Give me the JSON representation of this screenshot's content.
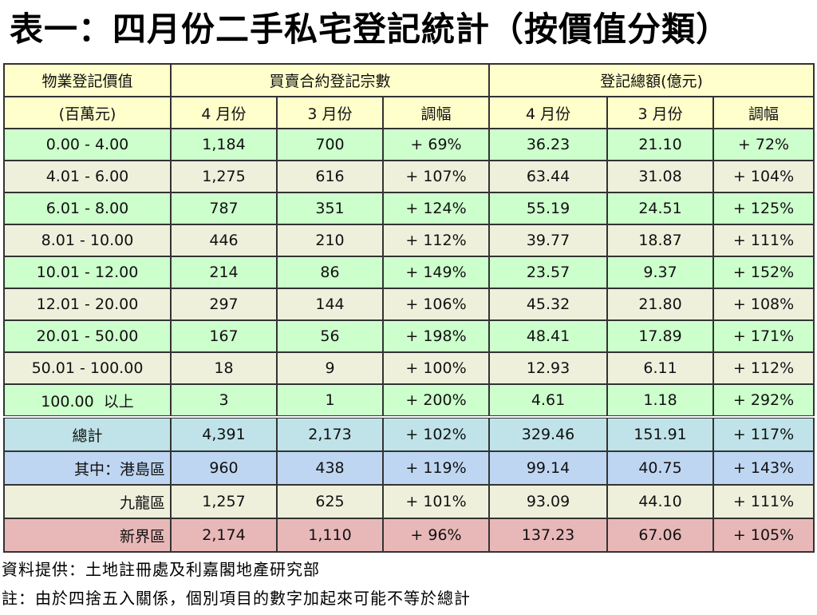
{
  "title": "表一：四月份二手私宅登記統計（按價值分類）",
  "header": {
    "value_label_1": "物業登記價值",
    "value_label_2": "(百萬元)",
    "group_count": "買賣合約登記宗數",
    "group_amount": "登記總額(億元)",
    "apr": "4 月份",
    "mar": "3 月份",
    "change": "調幅"
  },
  "rows": [
    {
      "range": "0.00 - 4.00",
      "c_apr": "1,184",
      "c_mar": "700",
      "c_chg": "+ 69%",
      "a_apr": "36.23",
      "a_mar": "21.10",
      "a_chg": "+ 72%"
    },
    {
      "range": "4.01 - 6.00",
      "c_apr": "1,275",
      "c_mar": "616",
      "c_chg": "+ 107%",
      "a_apr": "63.44",
      "a_mar": "31.08",
      "a_chg": "+ 104%"
    },
    {
      "range": "6.01 - 8.00",
      "c_apr": "787",
      "c_mar": "351",
      "c_chg": "+ 124%",
      "a_apr": "55.19",
      "a_mar": "24.51",
      "a_chg": "+ 125%"
    },
    {
      "range": "8.01 - 10.00",
      "c_apr": "446",
      "c_mar": "210",
      "c_chg": "+ 112%",
      "a_apr": "39.77",
      "a_mar": "18.87",
      "a_chg": "+ 111%"
    },
    {
      "range": "10.01 - 12.00",
      "c_apr": "214",
      "c_mar": "86",
      "c_chg": "+ 149%",
      "a_apr": "23.57",
      "a_mar": "9.37",
      "a_chg": "+ 152%"
    },
    {
      "range": "12.01 - 20.00",
      "c_apr": "297",
      "c_mar": "144",
      "c_chg": "+ 106%",
      "a_apr": "45.32",
      "a_mar": "21.80",
      "a_chg": "+ 108%"
    },
    {
      "range": "20.01 - 50.00",
      "c_apr": "167",
      "c_mar": "56",
      "c_chg": "+ 198%",
      "a_apr": "48.41",
      "a_mar": "17.89",
      "a_chg": "+ 171%"
    },
    {
      "range": "50.01 - 100.00",
      "c_apr": "18",
      "c_mar": "9",
      "c_chg": "+ 100%",
      "a_apr": "12.93",
      "a_mar": "6.11",
      "a_chg": "+ 112%"
    },
    {
      "range": "100.00  以上",
      "c_apr": "3",
      "c_mar": "1",
      "c_chg": "+ 200%",
      "a_apr": "4.61",
      "a_mar": "1.18",
      "a_chg": "+ 292%"
    }
  ],
  "total": {
    "label": "總計",
    "c_apr": "4,391",
    "c_mar": "2,173",
    "c_chg": "+ 102%",
    "a_apr": "329.46",
    "a_mar": "151.91",
    "a_chg": "+ 117%"
  },
  "hk": {
    "label": "其中：港島區",
    "c_apr": "960",
    "c_mar": "438",
    "c_chg": "+ 119%",
    "a_apr": "99.14",
    "a_mar": "40.75",
    "a_chg": "+ 143%"
  },
  "kln": {
    "label": "九龍區",
    "c_apr": "1,257",
    "c_mar": "625",
    "c_chg": "+ 101%",
    "a_apr": "93.09",
    "a_mar": "44.10",
    "a_chg": "+ 111%"
  },
  "nt": {
    "label": "新界區",
    "c_apr": "2,174",
    "c_mar": "1,110",
    "c_chg": "+ 96%",
    "a_apr": "137.23",
    "a_mar": "67.06",
    "a_chg": "+ 105%"
  },
  "notes": {
    "source": "資料提供：土地註冊處及利嘉閣地產研究部",
    "remark": "註：由於四捨五入關係，個別項目的數字加起來可能不等於總計"
  },
  "colors": {
    "header_bg": "#ffffcc",
    "row_green": "#ccffcc",
    "row_beige": "#eef0dc",
    "total_bg": "#bfe3e8",
    "hk_bg": "#bfd6f2",
    "nt_bg": "#e8b8b8"
  }
}
